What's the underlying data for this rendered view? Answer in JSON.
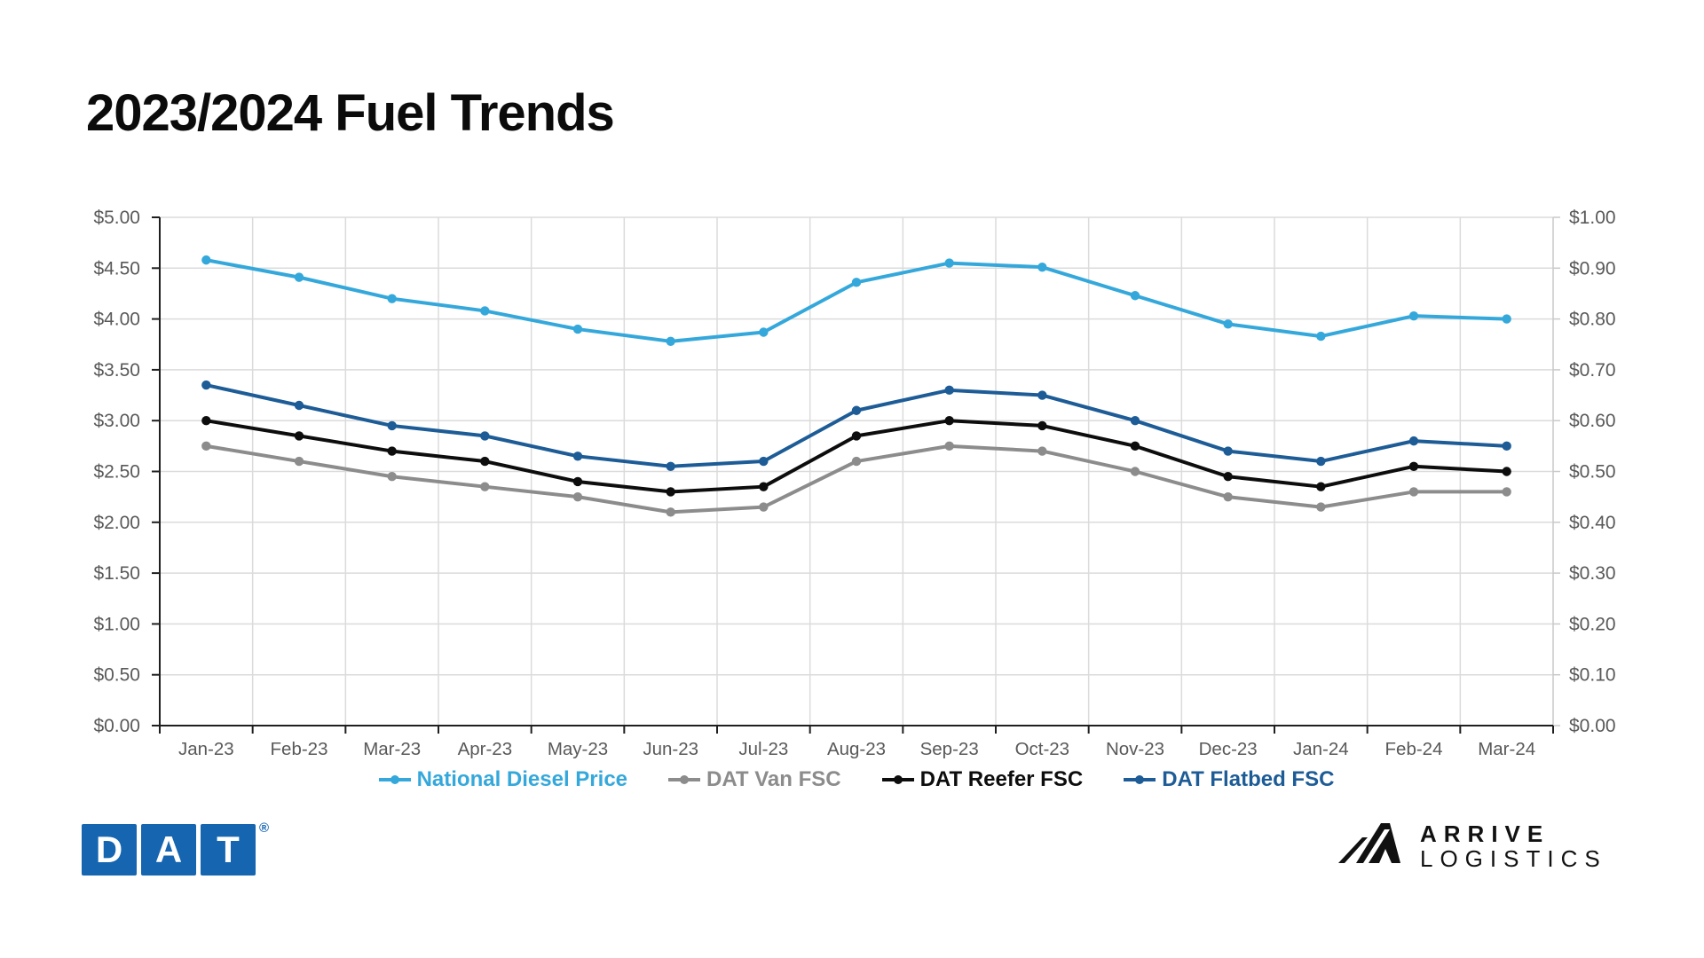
{
  "title": "2023/2024 Fuel Trends",
  "chart_data": {
    "type": "line",
    "title": "2023/2024 Fuel Trends",
    "categories": [
      "Jan-23",
      "Feb-23",
      "Mar-23",
      "Apr-23",
      "May-23",
      "Jun-23",
      "Jul-23",
      "Aug-23",
      "Sep-23",
      "Oct-23",
      "Nov-23",
      "Dec-23",
      "Jan-24",
      "Feb-24",
      "Mar-24"
    ],
    "series": [
      {
        "name": "National Diesel Price",
        "axis": "left",
        "color": "#35A8DB",
        "values": [
          4.58,
          4.41,
          4.2,
          4.08,
          3.9,
          3.78,
          3.87,
          4.36,
          4.55,
          4.51,
          4.23,
          3.95,
          3.83,
          4.03,
          4.0
        ]
      },
      {
        "name": "DAT Van FSC",
        "axis": "right",
        "color": "#8C8C8C",
        "values": [
          0.55,
          0.52,
          0.49,
          0.47,
          0.45,
          0.42,
          0.43,
          0.52,
          0.55,
          0.54,
          0.5,
          0.45,
          0.43,
          0.46,
          0.46
        ]
      },
      {
        "name": "DAT Reefer FSC",
        "axis": "right",
        "color": "#0D0D0D",
        "values": [
          0.6,
          0.57,
          0.54,
          0.52,
          0.48,
          0.46,
          0.47,
          0.57,
          0.6,
          0.59,
          0.55,
          0.49,
          0.47,
          0.51,
          0.5
        ]
      },
      {
        "name": "DAT Flatbed FSC",
        "axis": "right",
        "color": "#1D5C96",
        "values": [
          0.67,
          0.63,
          0.59,
          0.57,
          0.53,
          0.51,
          0.52,
          0.62,
          0.66,
          0.65,
          0.6,
          0.54,
          0.52,
          0.56,
          0.55
        ]
      }
    ],
    "left_axis": {
      "min": 0,
      "max": 5,
      "step": 0.5,
      "tick_labels": [
        "$5.00",
        "$4.50",
        "$4.00",
        "$3.50",
        "$3.00",
        "$2.50",
        "$2.00",
        "$1.50",
        "$1.00",
        "$0.50",
        "$0.00"
      ]
    },
    "right_axis": {
      "min": 0,
      "max": 1,
      "step": 0.1,
      "tick_labels": [
        "$1.00",
        "$0.90",
        "$0.80",
        "$0.70",
        "$0.60",
        "$0.50",
        "$0.40",
        "$0.30",
        "$0.20",
        "$0.10",
        "$0.00"
      ]
    },
    "grid": true,
    "legend_position": "bottom",
    "colors": {
      "gridline": "#DBDBDB",
      "axis_dark": "#1F1F1F",
      "axis_light": "#C9C9C9",
      "tick_label": "#595959"
    }
  },
  "footer": {
    "dat_logo": {
      "letters": [
        "D",
        "A",
        "T"
      ],
      "registered": "®",
      "color": "#1565B1"
    },
    "arrive_logo": {
      "line1": "ARRIVE",
      "line2": "LOGISTICS"
    }
  }
}
